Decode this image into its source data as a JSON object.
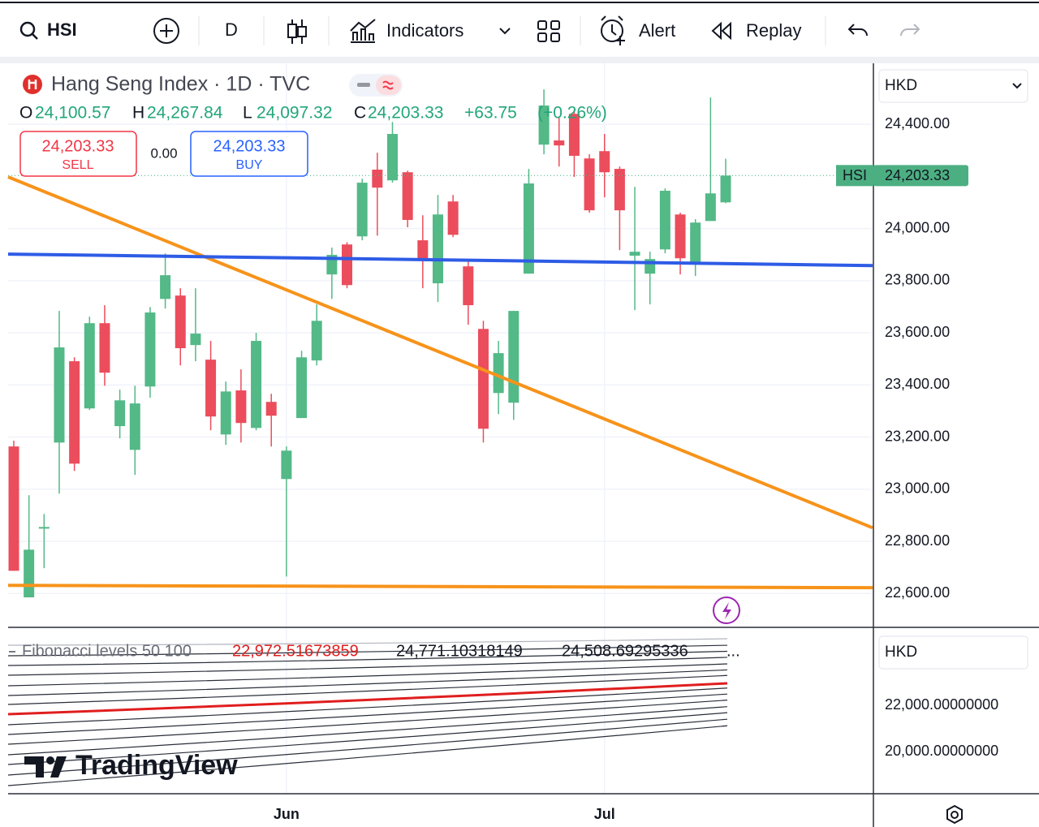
{
  "toolbar": {
    "symbol": "HSI",
    "interval": "D",
    "indicators": "Indicators",
    "alert": "Alert",
    "replay": "Replay"
  },
  "legend": {
    "title": "Hang Seng Index · 1D · TVC",
    "open_label": "O",
    "open": "24,100.57",
    "high_label": "H",
    "high": "24,267.84",
    "low_label": "L",
    "low": "24,097.32",
    "close_label": "C",
    "close": "24,203.33",
    "change": "+63.75",
    "change_pct": "(+0.26%)"
  },
  "trade": {
    "sell_price": "24,203.33",
    "sell": "SELL",
    "spread": "0.00",
    "buy_price": "24,203.33",
    "buy": "BUY"
  },
  "currency": "HKD",
  "chart_data": {
    "type": "candlestick",
    "up_color": "#53b987",
    "down_color": "#eb4d5c",
    "ylim": [
      22470,
      24634
    ],
    "yticks": [
      {
        "value": 22600,
        "label": "22,600.00"
      },
      {
        "value": 22800,
        "label": "22,800.00"
      },
      {
        "value": 23000,
        "label": "23,000.00"
      },
      {
        "value": 23200,
        "label": "23,200.00"
      },
      {
        "value": 23400,
        "label": "23,400.00"
      },
      {
        "value": 23600,
        "label": "23,600.00"
      },
      {
        "value": 23800,
        "label": "23,800.00"
      },
      {
        "value": 24000,
        "label": "24,000.00"
      },
      {
        "value": 24400,
        "label": "24,400.00"
      }
    ],
    "xticks": [
      {
        "value": 18,
        "label": "Jun"
      },
      {
        "value": 39,
        "label": "Jul"
      }
    ],
    "grid": true,
    "last_price": {
      "name": "HSI",
      "value": 24203.33,
      "label": "24,203.33"
    },
    "series": [
      {
        "name": "HSI",
        "open": [
          23164,
          22585,
          22849,
          23179,
          23491,
          23310,
          23637,
          23242,
          23151,
          23394,
          23730,
          23743,
          23553,
          23497,
          23210,
          23379,
          23235,
          23335,
          23039,
          23273,
          23494,
          23824,
          23939,
          23970,
          24226,
          24185,
          24216,
          23955,
          23790,
          24104,
          23855,
          23615,
          23369,
          23332,
          23827,
          24322,
          24338,
          24440,
          24269,
          24297,
          24229,
          23896,
          23827,
          23920,
          24054,
          23864,
          24029,
          24100.57
        ],
        "high": [
          23186,
          22977,
          22905,
          23684,
          23506,
          23662,
          23706,
          23382,
          23397,
          23699,
          23905,
          23771,
          23771,
          23569,
          23413,
          23460,
          23600,
          23366,
          23164,
          23531,
          23709,
          23927,
          23948,
          24191,
          24291,
          24409,
          24222,
          24051,
          24129,
          24129,
          23880,
          23646,
          23569,
          23684,
          24229,
          24534,
          24425,
          24456,
          24285,
          24363,
          24238,
          24160,
          23911,
          24154,
          24061,
          24036,
          24503,
          24267.84
        ],
        "low": [
          22687,
          22585,
          22697,
          22983,
          23070,
          23304,
          23397,
          23195,
          23055,
          23351,
          23693,
          23475,
          23491,
          23226,
          23170,
          23179,
          23226,
          23164,
          22665,
          23273,
          23475,
          23730,
          23771,
          23955,
          23973,
          24176,
          24005,
          23771,
          23718,
          23967,
          23631,
          23179,
          23288,
          23266,
          23827,
          24285,
          24238,
          24198,
          24061,
          24120,
          23917,
          23687,
          23709,
          23905,
          23824,
          23818,
          24029,
          24097.32
        ],
        "close": [
          22687,
          22768,
          22855,
          23544,
          23098,
          23637,
          23447,
          23341,
          23329,
          23678,
          23821,
          23541,
          23597,
          23279,
          23375,
          23254,
          23569,
          23282,
          23148,
          23506,
          23646,
          23899,
          23783,
          24176,
          24157,
          24363,
          24033,
          23886,
          24054,
          23976,
          23706,
          23232,
          23522,
          23684,
          24173,
          24472,
          24319,
          24279,
          24070,
          24216,
          24070,
          23911,
          23883,
          24145,
          23886,
          24023,
          24135,
          24203.33
        ]
      }
    ],
    "trendlines": [
      {
        "color": "#f7931a",
        "values": [
          24198,
          22852
        ]
      },
      {
        "color": "#2e5ce6",
        "values": [
          23902,
          23858
        ]
      },
      {
        "color": "#f7931a",
        "values": [
          22631,
          22622
        ]
      }
    ]
  },
  "indicator": {
    "name": "Fibonacci levels 50 100",
    "values": [
      "22,972.51673859",
      "24,771.10318149",
      "24,508.69295336"
    ],
    "more": "...",
    "currency": "HKD",
    "yticks": [
      {
        "value": 22000,
        "label": "22,000.00000000"
      },
      {
        "value": 20000,
        "label": "20,000.00000000"
      }
    ]
  },
  "watermark": "TradingView"
}
